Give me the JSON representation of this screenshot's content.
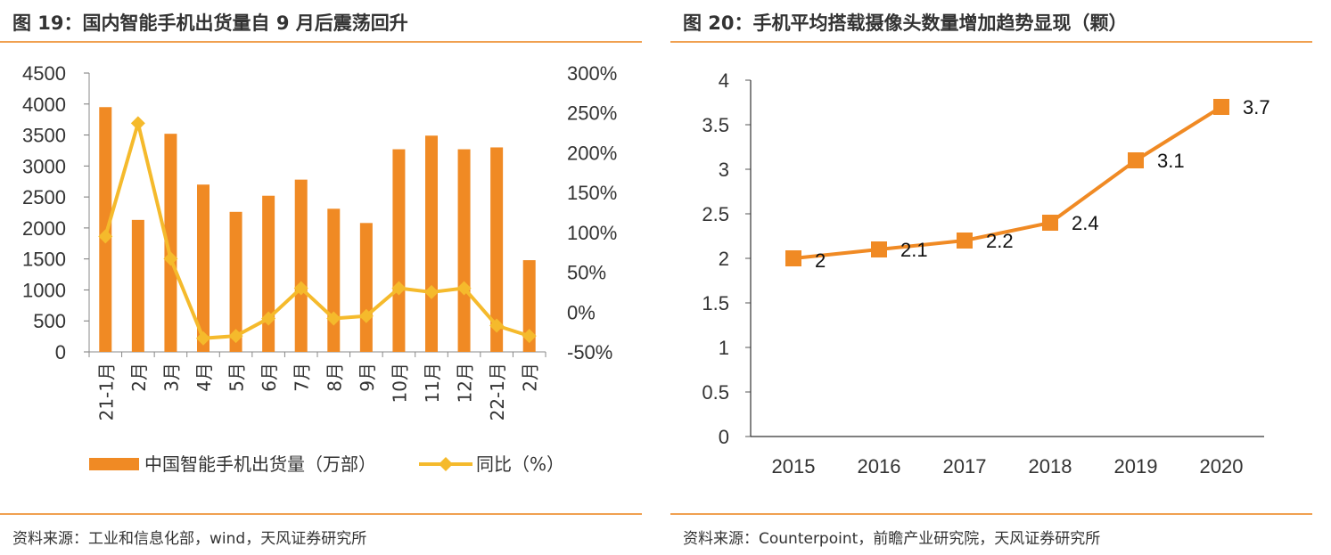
{
  "left": {
    "title": "图 19：国内智能手机出货量自 9 月后震荡回升",
    "source": "资料来源：工业和信息化部，wind，天风证券研究所"
  },
  "right": {
    "title": "图 20：手机平均搭载摄像头数量增加趋势显现（颗）",
    "source": "资料来源：Counterpoint，前瞻产业研究院，天风证券研究所"
  },
  "colors": {
    "bar": "#F08A24",
    "line": "#F5BA2C",
    "line2": "#F08A24",
    "rule": "#F0A050"
  },
  "chart_data": [
    {
      "type": "bar",
      "categories": [
        "21-1月",
        "2月",
        "3月",
        "4月",
        "5月",
        "6月",
        "7月",
        "8月",
        "9月",
        "10月",
        "11月",
        "12月",
        "22-1月",
        "2月"
      ],
      "series": [
        {
          "name": "中国智能手机出货量（万部）",
          "type": "bar",
          "axis": "left",
          "values": [
            3950,
            2130,
            3520,
            2700,
            2260,
            2520,
            2780,
            2310,
            2080,
            3270,
            3490,
            3270,
            3300,
            1480
          ]
        },
        {
          "name": "同比（%）",
          "type": "line",
          "axis": "right",
          "values": [
            95,
            237,
            67,
            -33,
            -30,
            -8,
            30,
            -8,
            -5,
            30,
            25,
            30,
            -17,
            -30
          ]
        }
      ],
      "ylim": [
        0,
        4500
      ],
      "yticks": [
        0,
        500,
        1000,
        1500,
        2000,
        2500,
        3000,
        3500,
        4000,
        4500
      ],
      "y2lim": [
        -50,
        300
      ],
      "y2ticks": [
        "-50%",
        "0%",
        "50%",
        "100%",
        "150%",
        "200%",
        "250%",
        "300%"
      ],
      "legend": [
        "中国智能手机出货量（万部）",
        "同比（%）"
      ],
      "legend_position": "bottom"
    },
    {
      "type": "line",
      "x": [
        "2015",
        "2016",
        "2017",
        "2018",
        "2019",
        "2020"
      ],
      "values": [
        2,
        2.1,
        2.2,
        2.4,
        3.1,
        3.7
      ],
      "labels": [
        "2",
        "2.1",
        "2.2",
        "2.4",
        "3.1",
        "3.7"
      ],
      "ylim": [
        0,
        4
      ],
      "yticks": [
        "0",
        "0.5",
        "1",
        "1.5",
        "2",
        "2.5",
        "3",
        "3.5",
        "4"
      ]
    }
  ]
}
